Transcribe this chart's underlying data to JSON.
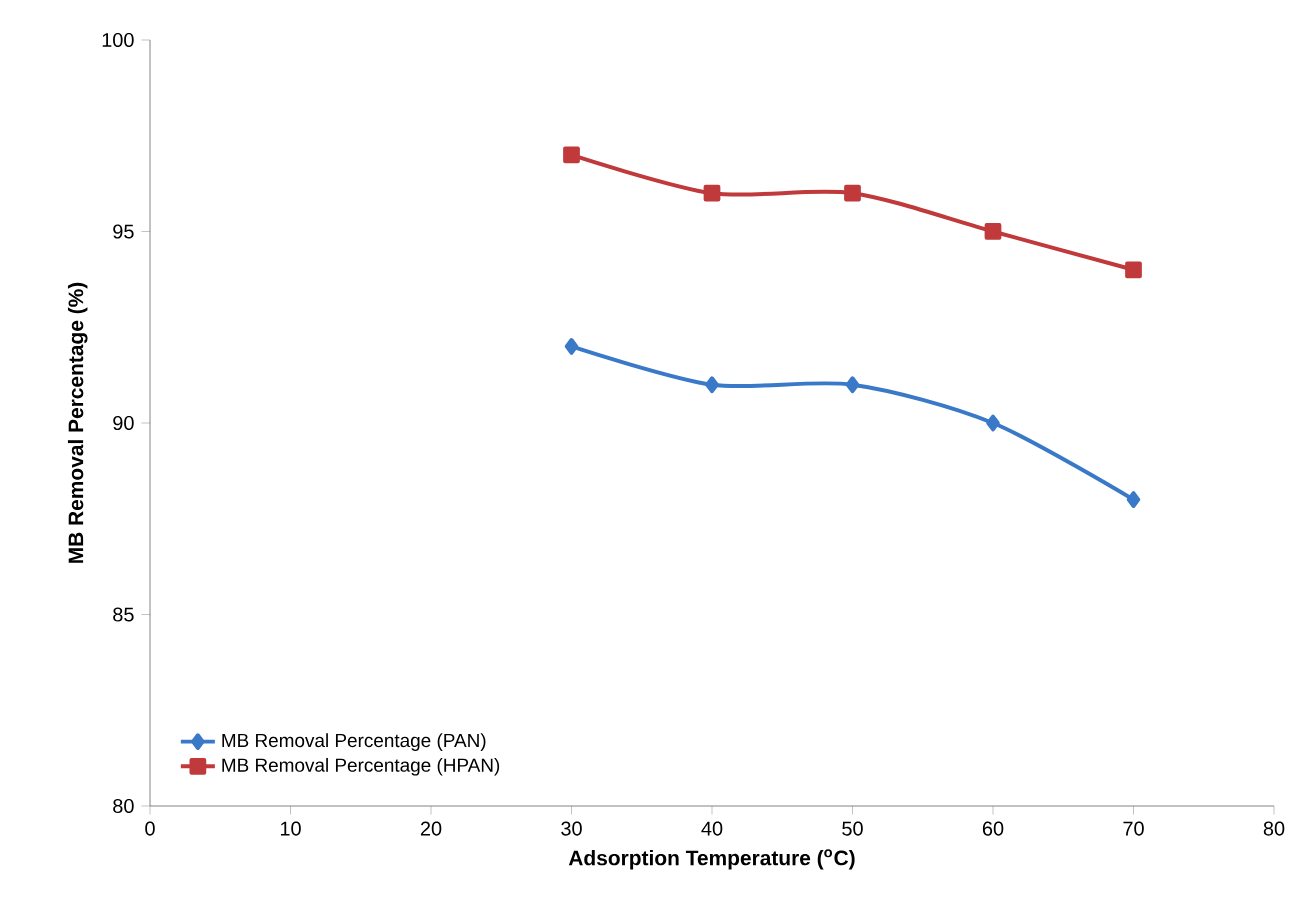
{
  "chart_data": {
    "type": "line",
    "xlabel": "Adsorption Temperature ($^{o}$C)",
    "ylabel": "MB Removal Percentage (%)",
    "x": [
      30,
      40,
      50,
      60,
      70
    ],
    "series": [
      {
        "name": "MB Removal Percentage (PAN)",
        "color": "#3a78c8",
        "marker": "diamond",
        "values": [
          92,
          91,
          91,
          90,
          88
        ]
      },
      {
        "name": "MB Removal Percentage (HPAN)",
        "color": "#c0393b",
        "marker": "square",
        "values": [
          97,
          96,
          96,
          95,
          94
        ]
      }
    ],
    "xlim": [
      0,
      80
    ],
    "xticks": [
      0,
      10,
      20,
      30,
      40,
      50,
      60,
      70,
      80
    ],
    "ylim": [
      80,
      100
    ],
    "yticks": [
      80,
      85,
      90,
      95,
      100
    ],
    "legend": "bottom left",
    "grid": false
  }
}
